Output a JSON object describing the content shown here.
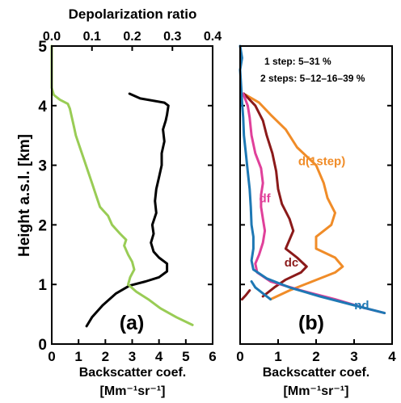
{
  "figure": {
    "y_axis_label": "Height a.s.l. [km]",
    "y_ticks": [
      "0",
      "1",
      "2",
      "3",
      "4",
      "5"
    ]
  },
  "chart_data": [
    {
      "type": "line",
      "panel_label": "(a)",
      "title": "Depolarization ratio",
      "xlabel_line1": "Backscatter coef.",
      "xlabel_line2": "[Mm⁻¹sr⁻¹]",
      "ylabel": "Height a.s.l. [km]",
      "xlim": [
        0,
        6
      ],
      "x_ticks": [
        "0",
        "1",
        "2",
        "3",
        "4",
        "5",
        "6"
      ],
      "top_xlim": [
        0,
        0.4
      ],
      "top_x_ticks": [
        "0.0",
        "0.1",
        "0.2",
        "0.3",
        "0.4"
      ],
      "ylim": [
        0,
        5
      ],
      "grid": false,
      "series": [
        {
          "axis": "bottom",
          "color": "#000000",
          "points": [
            [
              1.3,
              0.3
            ],
            [
              1.5,
              0.45
            ],
            [
              1.9,
              0.65
            ],
            [
              2.4,
              0.85
            ],
            [
              2.9,
              0.98
            ],
            [
              3.5,
              1.05
            ],
            [
              4.0,
              1.12
            ],
            [
              4.3,
              1.22
            ],
            [
              4.3,
              1.35
            ],
            [
              4.0,
              1.45
            ],
            [
              3.8,
              1.55
            ],
            [
              3.7,
              1.7
            ],
            [
              3.8,
              1.85
            ],
            [
              3.75,
              2.0
            ],
            [
              3.9,
              2.2
            ],
            [
              3.85,
              2.4
            ],
            [
              3.9,
              2.6
            ],
            [
              4.0,
              2.8
            ],
            [
              4.1,
              3.0
            ],
            [
              4.1,
              3.2
            ],
            [
              4.2,
              3.4
            ],
            [
              4.15,
              3.6
            ],
            [
              4.25,
              3.75
            ],
            [
              4.3,
              3.85
            ],
            [
              4.35,
              4.0
            ],
            [
              4.2,
              4.05
            ],
            [
              3.3,
              4.12
            ],
            [
              2.9,
              4.2
            ]
          ]
        },
        {
          "axis": "top",
          "color": "#99cc55",
          "points": [
            [
              0.35,
              0.32
            ],
            [
              0.31,
              0.45
            ],
            [
              0.27,
              0.6
            ],
            [
              0.24,
              0.75
            ],
            [
              0.21,
              0.88
            ],
            [
              0.19,
              1.0
            ],
            [
              0.195,
              1.12
            ],
            [
              0.205,
              1.25
            ],
            [
              0.2,
              1.38
            ],
            [
              0.19,
              1.5
            ],
            [
              0.18,
              1.65
            ],
            [
              0.185,
              1.75
            ],
            [
              0.17,
              1.85
            ],
            [
              0.15,
              2.0
            ],
            [
              0.14,
              2.15
            ],
            [
              0.12,
              2.3
            ],
            [
              0.11,
              2.5
            ],
            [
              0.1,
              2.7
            ],
            [
              0.09,
              2.9
            ],
            [
              0.08,
              3.1
            ],
            [
              0.07,
              3.3
            ],
            [
              0.06,
              3.5
            ],
            [
              0.055,
              3.65
            ],
            [
              0.05,
              3.8
            ],
            [
              0.045,
              3.95
            ],
            [
              0.04,
              4.03
            ],
            [
              0.02,
              4.1
            ],
            [
              0.005,
              4.18
            ],
            [
              0.0,
              4.3
            ],
            [
              0.0,
              5.0
            ]
          ]
        }
      ]
    },
    {
      "type": "line",
      "panel_label": "(b)",
      "xlabel_line1": "Backscatter coef.",
      "xlabel_line2": "[Mm⁻¹sr⁻¹]",
      "xlim": [
        0,
        4
      ],
      "x_ticks": [
        "0",
        "1",
        "2",
        "3",
        "4"
      ],
      "ylim": [
        0,
        5
      ],
      "grid": false,
      "annotation_lines": [
        "1  step: 5–31 %",
        "2 steps: 5–12–16–39 %"
      ],
      "series": [
        {
          "name": "d(1step)",
          "color": "#f08c28",
          "points": [
            [
              0.8,
              0.75
            ],
            [
              1.3,
              0.9
            ],
            [
              1.9,
              1.05
            ],
            [
              2.5,
              1.2
            ],
            [
              2.7,
              1.3
            ],
            [
              2.5,
              1.45
            ],
            [
              2.0,
              1.6
            ],
            [
              2.0,
              1.8
            ],
            [
              2.4,
              2.0
            ],
            [
              2.5,
              2.2
            ],
            [
              2.3,
              2.45
            ],
            [
              2.2,
              2.7
            ],
            [
              2.0,
              3.0
            ],
            [
              1.5,
              3.3
            ],
            [
              1.2,
              3.6
            ],
            [
              0.8,
              3.85
            ],
            [
              0.5,
              4.05
            ],
            [
              0.15,
              4.18
            ]
          ]
        },
        {
          "name": "dc",
          "color": "#8b1a1a",
          "points": [
            [
              0.6,
              0.8
            ],
            [
              0.9,
              0.95
            ],
            [
              1.2,
              1.08
            ],
            [
              1.6,
              1.2
            ],
            [
              1.75,
              1.3
            ],
            [
              1.5,
              1.45
            ],
            [
              1.2,
              1.6
            ],
            [
              1.3,
              1.75
            ],
            [
              1.4,
              1.9
            ],
            [
              1.3,
              2.1
            ],
            [
              1.1,
              2.35
            ],
            [
              1.0,
              2.6
            ],
            [
              0.95,
              2.9
            ],
            [
              0.85,
              3.2
            ],
            [
              0.7,
              3.5
            ],
            [
              0.6,
              3.75
            ],
            [
              0.4,
              4.0
            ],
            [
              0.1,
              4.2
            ]
          ]
        },
        {
          "name": "df",
          "color": "#e0409a",
          "points": [
            [
              3.8,
              0.52
            ],
            [
              3.3,
              0.6
            ],
            [
              2.5,
              0.75
            ],
            [
              1.6,
              0.9
            ],
            [
              0.8,
              1.05
            ],
            [
              0.45,
              1.2
            ],
            [
              0.4,
              1.35
            ],
            [
              0.5,
              1.5
            ],
            [
              0.6,
              1.7
            ],
            [
              0.65,
              1.9
            ],
            [
              0.6,
              2.1
            ],
            [
              0.55,
              2.3
            ],
            [
              0.55,
              2.5
            ],
            [
              0.6,
              2.7
            ],
            [
              0.55,
              2.95
            ],
            [
              0.4,
              3.2
            ],
            [
              0.3,
              3.5
            ],
            [
              0.25,
              3.8
            ],
            [
              0.2,
              4.0
            ],
            [
              0.08,
              4.2
            ]
          ]
        },
        {
          "name": "nd",
          "color": "#1e78b4",
          "points": [
            [
              3.8,
              0.52
            ],
            [
              3.0,
              0.65
            ],
            [
              2.1,
              0.8
            ],
            [
              1.3,
              0.95
            ],
            [
              0.7,
              1.1
            ],
            [
              0.35,
              1.25
            ],
            [
              0.3,
              1.4
            ],
            [
              0.35,
              1.6
            ],
            [
              0.35,
              1.8
            ],
            [
              0.3,
              2.0
            ],
            [
              0.28,
              2.3
            ],
            [
              0.25,
              2.6
            ],
            [
              0.2,
              2.9
            ],
            [
              0.15,
              3.2
            ],
            [
              0.1,
              3.5
            ],
            [
              0.08,
              3.8
            ],
            [
              0.05,
              4.05
            ],
            [
              0.03,
              4.3
            ],
            [
              0.0,
              4.6
            ],
            [
              0.05,
              4.8
            ],
            [
              0.0,
              5.0
            ]
          ]
        },
        {
          "color": "#1e78b4",
          "points": [
            [
              0.8,
              0.75
            ],
            [
              0.6,
              0.85
            ],
            [
              0.4,
              0.95
            ],
            [
              0.3,
              1.05
            ]
          ]
        },
        {
          "color": "#8b1a1a",
          "points": [
            [
              0.05,
              0.75
            ],
            [
              0.15,
              0.82
            ],
            [
              0.25,
              0.9
            ]
          ]
        }
      ],
      "labels": [
        {
          "text": "d(1step)",
          "color": "#f08c28",
          "x": 2.15,
          "y": 3.0
        },
        {
          "text": "df",
          "color": "#e0409a",
          "x": 0.65,
          "y": 2.38
        },
        {
          "text": "dc",
          "color": "#8b1a1a",
          "x": 1.35,
          "y": 1.3
        },
        {
          "text": "nd",
          "color": "#1e78b4",
          "x": 3.2,
          "y": 0.58
        }
      ]
    }
  ],
  "colors": {
    "axes": "#000000",
    "backscatter": "#000000",
    "depolarization": "#99cc55",
    "d_1step": "#f08c28",
    "dc": "#8b1a1a",
    "df": "#e0409a",
    "nd": "#1e78b4"
  }
}
